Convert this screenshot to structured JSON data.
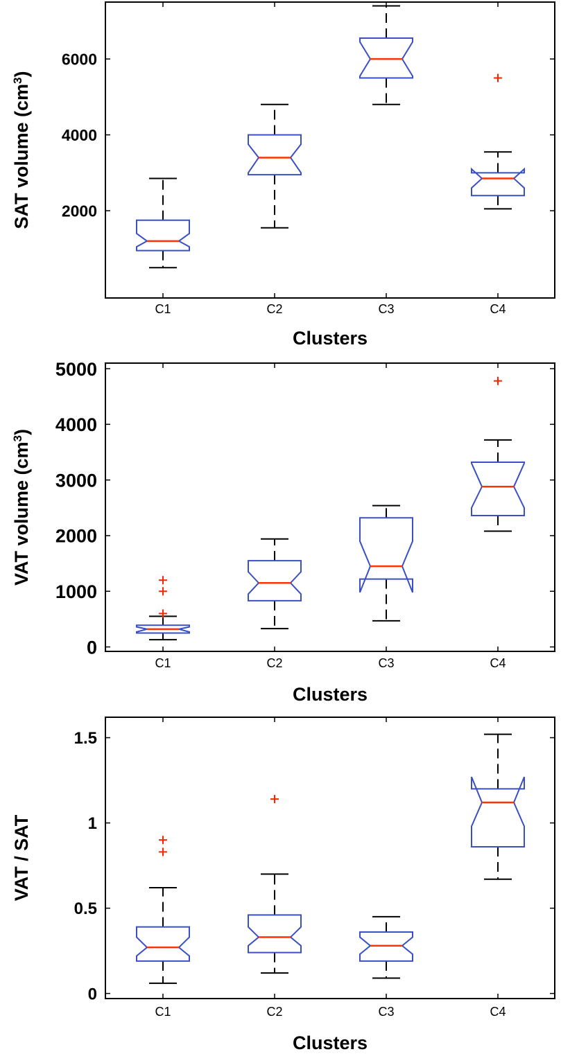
{
  "colors": {
    "box": "#3a4fc4",
    "median": "#ff3300",
    "outlier": "#ff2200",
    "whisker": "#000000",
    "axis": "#000000"
  },
  "chart_data": [
    {
      "type": "boxplot",
      "title": "",
      "xlabel": "Clusters",
      "ylabel": "SAT volume (cm",
      "ylabel_sup": "3",
      "ylabel_close": ")",
      "ylim": [
        -300,
        7500
      ],
      "yticks": [
        2000,
        4000,
        6000
      ],
      "ytick_labels": [
        "2000",
        "4000",
        "6000"
      ],
      "categories": [
        "C1",
        "C2",
        "C3",
        "C4"
      ],
      "boxes": [
        {
          "lw": 500,
          "q1": 950,
          "med": 1200,
          "q3": 1750,
          "uw": 2850,
          "nlo": 1050,
          "nhi": 1400,
          "outliers": []
        },
        {
          "lw": 1550,
          "q1": 2950,
          "med": 3400,
          "q3": 4000,
          "uw": 4800,
          "nlo": 3000,
          "nhi": 3750,
          "outliers": []
        },
        {
          "lw": 4800,
          "q1": 5500,
          "med": 6000,
          "q3": 6550,
          "uw": 7400,
          "nlo": 5550,
          "nhi": 6450,
          "outliers": []
        },
        {
          "lw": 2050,
          "q1": 2400,
          "med": 2850,
          "q3": 3000,
          "uw": 3550,
          "nlo": 2600,
          "nhi": 3100,
          "outliers": [
            5500
          ]
        }
      ]
    },
    {
      "type": "boxplot",
      "title": "",
      "xlabel": "Clusters",
      "ylabel": "VAT volume (cm",
      "ylabel_sup": "3",
      "ylabel_close": ")",
      "ylim": [
        -80,
        5100
      ],
      "yticks": [
        0,
        1000,
        2000,
        3000,
        4000,
        5000
      ],
      "ytick_labels": [
        "0",
        "1000",
        "2000",
        "3000",
        "4000",
        "5000"
      ],
      "categories": [
        "C1",
        "C2",
        "C3",
        "C4"
      ],
      "boxes": [
        {
          "lw": 130,
          "q1": 250,
          "med": 320,
          "q3": 390,
          "uw": 550,
          "nlo": 270,
          "nhi": 360,
          "outliers": [
            600,
            1000,
            1200
          ]
        },
        {
          "lw": 330,
          "q1": 830,
          "med": 1150,
          "q3": 1550,
          "uw": 1940,
          "nlo": 950,
          "nhi": 1350,
          "outliers": []
        },
        {
          "lw": 470,
          "q1": 1220,
          "med": 1450,
          "q3": 2320,
          "uw": 2540,
          "nlo": 980,
          "nhi": 1900,
          "outliers": []
        },
        {
          "lw": 2080,
          "q1": 2360,
          "med": 2880,
          "q3": 3320,
          "uw": 3720,
          "nlo": 2500,
          "nhi": 3300,
          "outliers": [
            4780
          ]
        }
      ]
    },
    {
      "type": "boxplot",
      "title": "",
      "xlabel": "Clusters",
      "ylabel": "VAT / SAT",
      "ylabel_sup": "",
      "ylabel_close": "",
      "ylim": [
        -0.03,
        1.62
      ],
      "yticks": [
        0,
        0.5,
        1,
        1.5
      ],
      "ytick_labels": [
        "0",
        "0.5",
        "1",
        "1.5"
      ],
      "categories": [
        "C1",
        "C2",
        "C3",
        "C4"
      ],
      "boxes": [
        {
          "lw": 0.06,
          "q1": 0.19,
          "med": 0.27,
          "q3": 0.39,
          "uw": 0.62,
          "nlo": 0.22,
          "nhi": 0.33,
          "outliers": [
            0.83,
            0.9
          ]
        },
        {
          "lw": 0.12,
          "q1": 0.24,
          "med": 0.33,
          "q3": 0.46,
          "uw": 0.7,
          "nlo": 0.28,
          "nhi": 0.39,
          "outliers": [
            1.14
          ]
        },
        {
          "lw": 0.09,
          "q1": 0.19,
          "med": 0.28,
          "q3": 0.36,
          "uw": 0.45,
          "nlo": 0.23,
          "nhi": 0.33,
          "outliers": []
        },
        {
          "lw": 0.67,
          "q1": 0.86,
          "med": 1.12,
          "q3": 1.2,
          "uw": 1.52,
          "nlo": 0.98,
          "nhi": 1.27,
          "outliers": []
        }
      ]
    }
  ]
}
